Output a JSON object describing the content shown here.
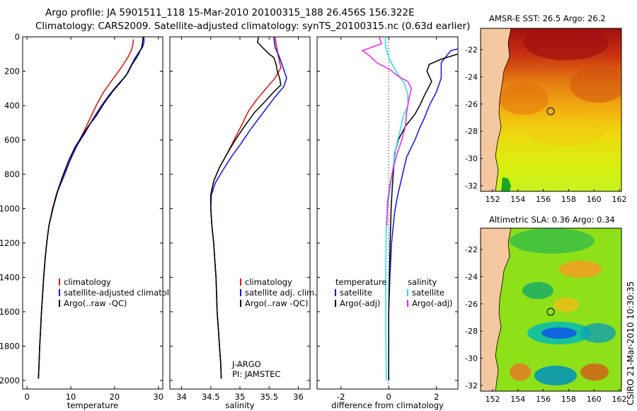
{
  "title_line1": "Argo profile: JA 5901511_118 15-Mar-2010 20100315_188 26.456S 156.322E",
  "title_line2": "Climatology: CARS2009. Satellite-adjusted climatology: synTS_20100315.nc (0.63d earlier)",
  "side_credit": "CSIRO 21-Mar-2010 10:30:35",
  "colors": {
    "climatology": "#dd1111",
    "satellite": "#1111ee",
    "argo": "#000000",
    "sat_salinity": "#22e0e0",
    "argo_adj_salinity": "#ee22ee",
    "land": "#f6c8a0"
  },
  "chart_data": [
    {
      "type": "line",
      "name": "temperature-panel",
      "xlabel": "temperature",
      "ylabel": "",
      "xlim": [
        -1,
        31
      ],
      "ylim": [
        2050,
        0
      ],
      "xticks": [
        0,
        10,
        20,
        30
      ],
      "yticks": [
        0,
        200,
        400,
        600,
        800,
        1000,
        1200,
        1400,
        1600,
        1800,
        2000
      ],
      "legend": [
        "climatology",
        "satellite-adjusted climatology",
        "Argo(..raw -QC)"
      ],
      "series": [
        {
          "name": "climatology",
          "color": "#dd1111",
          "points": [
            [
              24.3,
              15
            ],
            [
              24.2,
              40
            ],
            [
              23.8,
              80
            ],
            [
              23,
              120
            ],
            [
              21.5,
              180
            ],
            [
              19.5,
              250
            ],
            [
              17.5,
              320
            ],
            [
              15.8,
              400
            ],
            [
              14.3,
              480
            ],
            [
              12.8,
              560
            ],
            [
              11.6,
              620
            ],
            [
              10.2,
              700
            ],
            [
              8.5,
              800
            ],
            [
              6.9,
              900
            ],
            [
              5.8,
              1000
            ],
            [
              5,
              1100
            ],
            [
              4.5,
              1200
            ],
            [
              4.1,
              1300
            ],
            [
              3.8,
              1400
            ],
            [
              3.55,
              1500
            ],
            [
              3.3,
              1600
            ],
            [
              3.1,
              1700
            ],
            [
              2.9,
              1800
            ],
            [
              2.75,
              1900
            ],
            [
              2.6,
              1990
            ]
          ]
        },
        {
          "name": "satellite-adjusted climatology",
          "color": "#1111ee",
          "points": [
            [
              26.7,
              0
            ],
            [
              26.7,
              30
            ],
            [
              26.4,
              60
            ],
            [
              25.5,
              90
            ],
            [
              24.5,
              130
            ],
            [
              23.5,
              180
            ],
            [
              22.5,
              230
            ],
            [
              21,
              270
            ],
            [
              19,
              330
            ],
            [
              17,
              400
            ],
            [
              15,
              480
            ],
            [
              13.2,
              560
            ],
            [
              11.7,
              620
            ],
            [
              10.3,
              690
            ],
            [
              8.6,
              800
            ],
            [
              7,
              900
            ],
            [
              5.9,
              1000
            ],
            [
              5,
              1100
            ],
            [
              4.5,
              1200
            ],
            [
              4.1,
              1300
            ],
            [
              3.8,
              1400
            ],
            [
              3.55,
              1500
            ],
            [
              3.3,
              1600
            ],
            [
              3.1,
              1700
            ],
            [
              2.9,
              1800
            ],
            [
              2.75,
              1900
            ],
            [
              2.6,
              1990
            ]
          ]
        },
        {
          "name": "Argo(..raw -QC)",
          "color": "#000000",
          "points": [
            [
              26.5,
              0
            ],
            [
              26.4,
              30
            ],
            [
              26.2,
              60
            ],
            [
              25.5,
              100
            ],
            [
              24.8,
              130
            ],
            [
              24,
              160
            ],
            [
              23,
              210
            ],
            [
              21.5,
              260
            ],
            [
              19.5,
              320
            ],
            [
              17.5,
              390
            ],
            [
              15.8,
              460
            ],
            [
              14,
              520
            ],
            [
              12.5,
              580
            ],
            [
              11,
              640
            ],
            [
              9.5,
              720
            ],
            [
              8,
              820
            ],
            [
              6.7,
              920
            ],
            [
              5.7,
              1020
            ],
            [
              5,
              1100
            ],
            [
              4.5,
              1200
            ],
            [
              4.1,
              1300
            ],
            [
              3.8,
              1400
            ],
            [
              3.55,
              1500
            ],
            [
              3.3,
              1600
            ],
            [
              3.1,
              1700
            ],
            [
              2.9,
              1800
            ],
            [
              2.75,
              1900
            ],
            [
              2.6,
              1990
            ]
          ]
        }
      ]
    },
    {
      "type": "line",
      "name": "salinity-panel",
      "xlabel": "salinity",
      "ylabel": "",
      "xlim": [
        33.8,
        36.2
      ],
      "ylim": [
        2050,
        0
      ],
      "xticks": [
        34,
        34.5,
        35,
        35.5,
        36
      ],
      "yticks": [],
      "legend": [
        "climatology",
        "satellite adj. clim.",
        "Argo(..raw -QC)"
      ],
      "annotation_line1": "J-ARGO",
      "annotation_line2": "PI: JAMSTEC",
      "series": [
        {
          "name": "climatology",
          "color": "#dd1111",
          "points": [
            [
              35.6,
              0
            ],
            [
              35.62,
              40
            ],
            [
              35.65,
              100
            ],
            [
              35.7,
              180
            ],
            [
              35.6,
              240
            ],
            [
              35.45,
              300
            ],
            [
              35.3,
              360
            ],
            [
              35.15,
              430
            ],
            [
              35.02,
              520
            ],
            [
              34.9,
              600
            ],
            [
              34.78,
              680
            ],
            [
              34.65,
              760
            ],
            [
              34.55,
              840
            ],
            [
              34.5,
              920
            ],
            [
              34.5,
              1000
            ],
            [
              34.52,
              1100
            ],
            [
              34.55,
              1200
            ],
            [
              34.57,
              1300
            ],
            [
              34.59,
              1400
            ],
            [
              34.6,
              1500
            ],
            [
              34.61,
              1600
            ],
            [
              34.63,
              1700
            ],
            [
              34.65,
              1800
            ],
            [
              34.67,
              1900
            ],
            [
              34.68,
              1990
            ]
          ]
        },
        {
          "name": "satellite adj. clim.",
          "color": "#1111ee",
          "points": [
            [
              35.58,
              0
            ],
            [
              35.6,
              60
            ],
            [
              35.68,
              120
            ],
            [
              35.76,
              200
            ],
            [
              35.8,
              240
            ],
            [
              35.75,
              290
            ],
            [
              35.6,
              350
            ],
            [
              35.4,
              440
            ],
            [
              35.2,
              530
            ],
            [
              35.02,
              620
            ],
            [
              34.85,
              700
            ],
            [
              34.7,
              780
            ],
            [
              34.58,
              850
            ],
            [
              34.51,
              920
            ],
            [
              34.5,
              1000
            ],
            [
              34.52,
              1100
            ],
            [
              34.55,
              1200
            ],
            [
              34.57,
              1300
            ],
            [
              34.59,
              1400
            ],
            [
              34.6,
              1500
            ],
            [
              34.61,
              1600
            ],
            [
              34.63,
              1700
            ],
            [
              34.65,
              1800
            ],
            [
              34.67,
              1900
            ],
            [
              34.68,
              1990
            ]
          ]
        },
        {
          "name": "Argo(..raw -QC)",
          "color": "#000000",
          "points": [
            [
              35.32,
              0
            ],
            [
              35.3,
              30
            ],
            [
              35.38,
              60
            ],
            [
              35.5,
              100
            ],
            [
              35.58,
              120
            ],
            [
              35.62,
              160
            ],
            [
              35.64,
              200
            ],
            [
              35.68,
              240
            ],
            [
              35.7,
              280
            ],
            [
              35.58,
              320
            ],
            [
              35.42,
              380
            ],
            [
              35.25,
              440
            ],
            [
              35.08,
              520
            ],
            [
              34.92,
              600
            ],
            [
              34.78,
              680
            ],
            [
              34.65,
              760
            ],
            [
              34.55,
              840
            ],
            [
              34.5,
              920
            ],
            [
              34.5,
              1000
            ],
            [
              34.52,
              1100
            ],
            [
              34.55,
              1200
            ],
            [
              34.57,
              1300
            ],
            [
              34.59,
              1400
            ],
            [
              34.6,
              1500
            ],
            [
              34.61,
              1600
            ],
            [
              34.63,
              1700
            ],
            [
              34.65,
              1800
            ],
            [
              34.67,
              1900
            ],
            [
              34.68,
              1990
            ]
          ]
        }
      ]
    },
    {
      "type": "line",
      "name": "difference-panel",
      "xlabel": "difference from climatology",
      "ylabel": "",
      "xlim": [
        -3,
        2.9
      ],
      "ylim": [
        2050,
        0
      ],
      "xticks": [
        -2,
        0,
        2
      ],
      "yticks": [],
      "legend_temperature": [
        "temperature",
        "satellite",
        "Argo(-adj)"
      ],
      "legend_salinity": [
        "salinity",
        "satellite",
        "Argo(-adj)"
      ],
      "series": [
        {
          "name": "satellite",
          "group": "temperature",
          "color": "#1111ee",
          "points": [
            [
              2.9,
              70
            ],
            [
              2.6,
              80
            ],
            [
              2.2,
              150
            ],
            [
              2.2,
              240
            ],
            [
              2,
              320
            ],
            [
              1.7,
              400
            ],
            [
              1.5,
              470
            ],
            [
              1.3,
              530
            ],
            [
              1.1,
              600
            ],
            [
              0.75,
              700
            ],
            [
              0.55,
              820
            ],
            [
              0.38,
              920
            ],
            [
              0.25,
              1020
            ],
            [
              0.12,
              1200
            ],
            [
              0.05,
              1400
            ],
            [
              0,
              1600
            ],
            [
              0,
              2000
            ]
          ]
        },
        {
          "name": "Argo(-adj)",
          "group": "temperature",
          "color": "#000000",
          "points": [
            [
              2.9,
              100
            ],
            [
              2.2,
              130
            ],
            [
              1.7,
              160
            ],
            [
              1.6,
              200
            ],
            [
              1.8,
              260
            ],
            [
              1.5,
              340
            ],
            [
              1.3,
              400
            ],
            [
              1.1,
              450
            ],
            [
              0.7,
              520
            ],
            [
              0.4,
              600
            ],
            [
              0.25,
              680
            ],
            [
              0.2,
              780
            ],
            [
              0.15,
              880
            ],
            [
              0.1,
              1000
            ],
            [
              0.06,
              1200
            ],
            [
              0.03,
              1400
            ],
            [
              0,
              1600
            ],
            [
              0,
              2000
            ]
          ]
        },
        {
          "name": "satellite",
          "group": "salinity",
          "color": "#22e0e0",
          "points": [
            [
              -0.15,
              0
            ],
            [
              -0.12,
              60
            ],
            [
              0,
              120
            ],
            [
              0.3,
              200
            ],
            [
              0.65,
              270
            ],
            [
              0.8,
              330
            ],
            [
              0.8,
              400
            ],
            [
              0.6,
              470
            ],
            [
              0.45,
              560
            ],
            [
              0.3,
              650
            ],
            [
              0.18,
              760
            ],
            [
              0.06,
              880
            ],
            [
              -0.06,
              1000
            ],
            [
              -0.1,
              1100
            ],
            [
              -0.12,
              1300
            ],
            [
              -0.12,
              1500
            ],
            [
              -0.12,
              1700
            ],
            [
              -0.1,
              2000
            ]
          ]
        },
        {
          "name": "Argo(-adj)",
          "group": "salinity",
          "color": "#ee22ee",
          "points": [
            [
              -0.4,
              0
            ],
            [
              -0.3,
              40
            ],
            [
              -1.1,
              80
            ],
            [
              -0.8,
              110
            ],
            [
              -0.5,
              150
            ],
            [
              0.05,
              190
            ],
            [
              0.4,
              230
            ],
            [
              0.8,
              260
            ],
            [
              0.95,
              300
            ],
            [
              0.85,
              360
            ],
            [
              0.75,
              440
            ],
            [
              0.7,
              520
            ],
            [
              0.55,
              600
            ],
            [
              0.35,
              680
            ],
            [
              0.2,
              760
            ],
            [
              0.05,
              860
            ],
            [
              -0.05,
              960
            ],
            [
              -0.08,
              1100
            ]
          ]
        }
      ]
    }
  ],
  "maps": [
    {
      "title": "AMSR-E SST: 26.5 Argo: 26.2",
      "xticks": [
        "152",
        "154",
        "156",
        "158",
        "160",
        "162"
      ],
      "yticks": [
        "-22",
        "-24",
        "-26",
        "-28",
        "-30",
        "-32"
      ]
    },
    {
      "title": "Altimetric SLA: 0.36 Argo: 0.34",
      "xticks": [
        "152",
        "154",
        "156",
        "158",
        "160",
        "162"
      ],
      "yticks": [
        "-22",
        "-24",
        "-26",
        "-28",
        "-30",
        "-32"
      ]
    }
  ]
}
